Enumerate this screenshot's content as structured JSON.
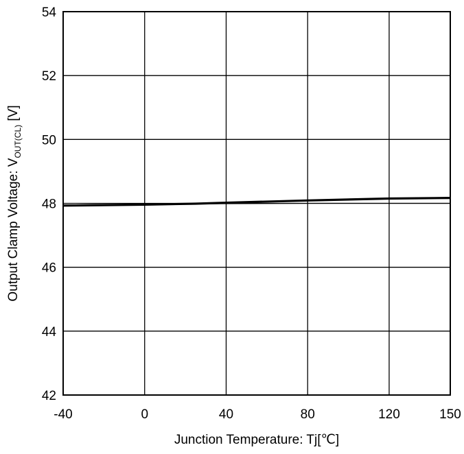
{
  "chart_data": {
    "type": "line",
    "title": "",
    "xlabel": "Junction Temperature: Tj[℃]",
    "ylabel": {
      "prefix": "Output Clamp Voltage:  V",
      "subscript": "OUT(CL)",
      "suffix": " [V]"
    },
    "xlim": [
      -40,
      150
    ],
    "ylim": [
      42,
      54
    ],
    "x_ticks": [
      -40,
      0,
      40,
      80,
      120,
      150
    ],
    "x_tick_labels": [
      "-40",
      "0",
      "40",
      "80",
      "120",
      "150"
    ],
    "y_ticks": [
      42,
      44,
      46,
      48,
      50,
      52,
      54
    ],
    "y_tick_labels": [
      "42",
      "44",
      "46",
      "48",
      "50",
      "52",
      "54"
    ],
    "grid": true,
    "legend": "none",
    "series": [
      {
        "x": [
          -40,
          0,
          25,
          40,
          80,
          120,
          150
        ],
        "y": [
          47.93,
          47.96,
          47.99,
          48.02,
          48.09,
          48.15,
          48.17
        ],
        "color": "#000000",
        "weight": "thick"
      },
      {
        "x": [
          -40,
          0,
          40,
          80,
          120,
          150
        ],
        "y": [
          47.95,
          47.97,
          47.99,
          48.0,
          48.0,
          48.0
        ],
        "color": "#000000",
        "weight": "thin"
      }
    ]
  }
}
